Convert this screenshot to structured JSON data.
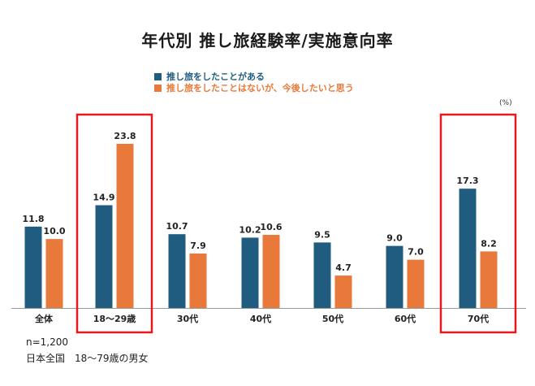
{
  "chart_data": {
    "type": "bar",
    "title": "年代別 推し旅経験率/実施意向率",
    "unit": "(%)",
    "categories": [
      "全体",
      "18～29歳",
      "30代",
      "40代",
      "50代",
      "60代",
      "70代"
    ],
    "series": [
      {
        "name": "推し旅をしたことがある",
        "color": "#1f5c7f",
        "values": [
          11.8,
          14.9,
          10.7,
          10.2,
          9.5,
          9.0,
          17.3
        ]
      },
      {
        "name": "推し旅をしたことはないが、今後したいと思う",
        "color": "#e8793a",
        "values": [
          10.0,
          23.8,
          7.9,
          10.6,
          4.7,
          7.0,
          8.2
        ]
      }
    ],
    "ylim": [
      0,
      24
    ],
    "highlighted_categories": [
      "18～29歳",
      "70代"
    ],
    "highlight_color": "#e8191e"
  },
  "notes": {
    "sample": "n=1,200",
    "population": "日本全国　18～79歳の男女"
  }
}
